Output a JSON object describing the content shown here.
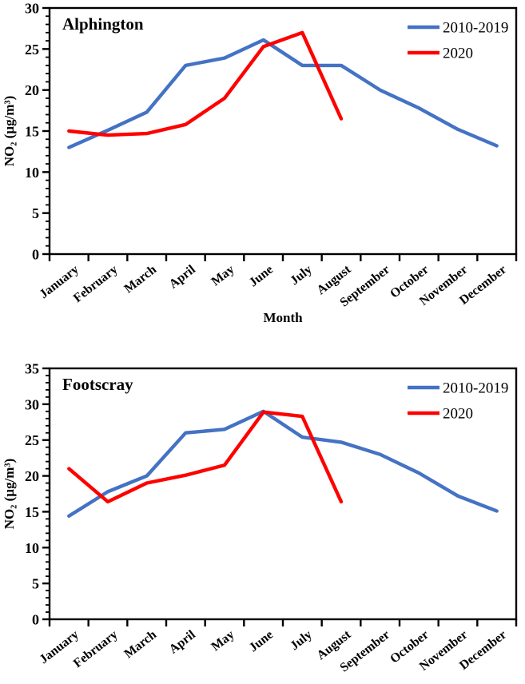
{
  "page": {
    "background": "#FFFFFF",
    "text_color": "#000000"
  },
  "chart_data": [
    {
      "type": "line",
      "title": "Alphington",
      "xlabel": "Month",
      "ylabel": "NO₂ (µg/m³)",
      "ylim": [
        0,
        30
      ],
      "ytick_step": 5,
      "yminor_step": 1,
      "grid": false,
      "legend_position": "top-right-inside",
      "categories": [
        "January",
        "February",
        "March",
        "April",
        "May",
        "June",
        "July",
        "August",
        "September",
        "October",
        "November",
        "December"
      ],
      "series": [
        {
          "name": "2010-2019",
          "color": "#4472C4",
          "values": [
            13,
            15.1,
            17.3,
            23,
            23.9,
            26.1,
            23,
            23,
            20,
            17.8,
            15.2,
            13.2
          ]
        },
        {
          "name": "2020",
          "color": "#FF0000",
          "values": [
            15,
            14.5,
            14.7,
            15.8,
            19,
            25.3,
            27,
            16.5
          ]
        }
      ]
    },
    {
      "type": "line",
      "title": "Footscray",
      "xlabel": "",
      "ylabel": "NO₂ (µg/m³)",
      "ylim": [
        0,
        35
      ],
      "ytick_step": 5,
      "yminor_step": 1,
      "grid": false,
      "legend_position": "top-right-inside",
      "categories": [
        "January",
        "February",
        "March",
        "April",
        "May",
        "June",
        "July",
        "August",
        "September",
        "October",
        "November",
        "December"
      ],
      "series": [
        {
          "name": "2010-2019",
          "color": "#4472C4",
          "values": [
            14.4,
            17.8,
            20,
            26,
            26.5,
            29,
            25.4,
            24.7,
            23,
            20.4,
            17.2,
            15.1
          ]
        },
        {
          "name": "2020",
          "color": "#FF0000",
          "values": [
            21,
            16.4,
            19,
            20.1,
            21.5,
            28.9,
            28.3,
            16.4
          ]
        }
      ]
    }
  ]
}
